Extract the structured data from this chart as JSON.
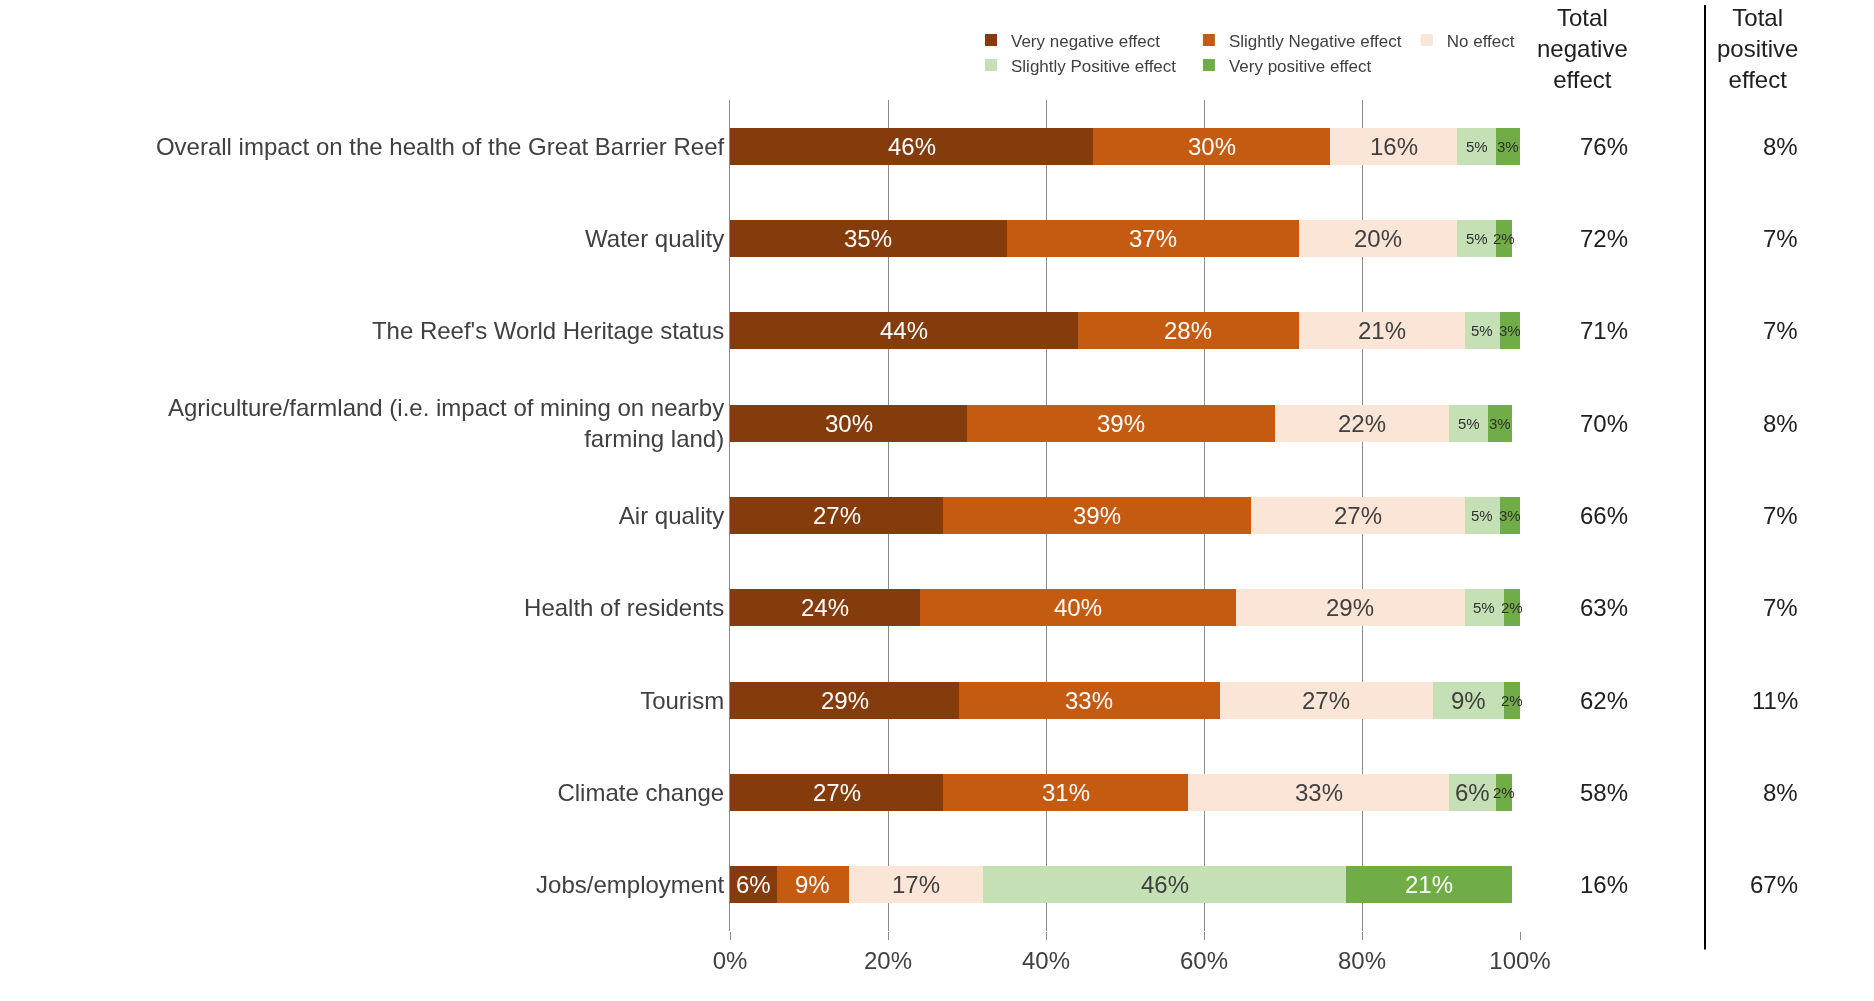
{
  "chart_data": {
    "type": "bar",
    "orientation": "horizontal",
    "stacked": true,
    "categories": [
      "Overall impact on the health of the Great Barrier Reef",
      "Water quality",
      "The Reef's World Heritage status",
      "Agriculture/farmland (i.e. impact of mining on nearby farming land)",
      "Air quality",
      "Health of residents",
      "Tourism",
      "Climate change",
      "Jobs/employment"
    ],
    "series": [
      {
        "name": "Very negative effect",
        "color": "#843c0c",
        "values": [
          46,
          35,
          44,
          30,
          27,
          24,
          29,
          27,
          6
        ],
        "value_labels": [
          "46%",
          "35%",
          "44%",
          "30%",
          "27%",
          "24%",
          "29%",
          "27%",
          "6%"
        ]
      },
      {
        "name": "Slightly Negative effect",
        "color": "#c55a11",
        "values": [
          30,
          37,
          28,
          39,
          39,
          40,
          33,
          31,
          9
        ],
        "value_labels": [
          "30%",
          "37%",
          "28%",
          "39%",
          "39%",
          "40%",
          "33%",
          "31%",
          "9%"
        ]
      },
      {
        "name": "No effect",
        "color": "#fbe5d6",
        "values": [
          16,
          20,
          21,
          22,
          27,
          29,
          27,
          33,
          17
        ],
        "value_labels": [
          "16%",
          "20%",
          "21%",
          "22%",
          "27%",
          "29%",
          "27%",
          "33%",
          "17%"
        ]
      },
      {
        "name": "Slightly Positive effect",
        "color": "#c5e0b4",
        "values": [
          5,
          5,
          4.5,
          5,
          4.5,
          5,
          9,
          6,
          46
        ],
        "value_labels": [
          "5%",
          "5%",
          "5%",
          "5%",
          "5%",
          "5%",
          "9%",
          "6%",
          "46%"
        ]
      },
      {
        "name": "Very positive effect",
        "color": "#70ad47",
        "values": [
          3,
          2,
          2.5,
          3,
          2.5,
          2,
          2,
          2,
          21
        ],
        "value_labels": [
          "3%",
          "2%",
          "3%",
          "3%",
          "3%",
          "2%",
          "2%",
          "2%",
          "21%"
        ]
      }
    ],
    "xlim": [
      0,
      100
    ],
    "xticks": [
      {
        "value": 0,
        "label": "0%"
      },
      {
        "value": 20,
        "label": "20%"
      },
      {
        "value": 40,
        "label": "40%"
      },
      {
        "value": 60,
        "label": "60%"
      },
      {
        "value": 80,
        "label": "80%"
      },
      {
        "value": 100,
        "label": "100%"
      }
    ],
    "grid": "x",
    "legend": "top right",
    "annotations": [
      "Total negative effect",
      "Total positive effect",
      "76%",
      "8%",
      "72%",
      "7%",
      "71%",
      "7%",
      "70%",
      "8%",
      "66%",
      "7%",
      "63%",
      "7%",
      "62%",
      "11%",
      "58%",
      "8%",
      "16%",
      "67%"
    ]
  }
}
